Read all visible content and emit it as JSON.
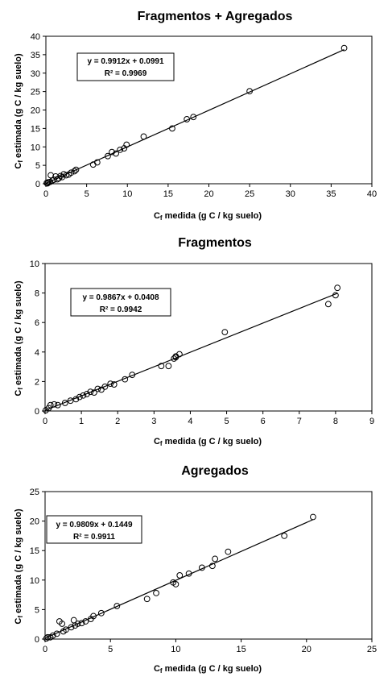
{
  "chart_data": [
    {
      "type": "scatter",
      "title": "Fragmentos + Agregados",
      "xlabel_main": "C",
      "xlabel_sub": "f",
      "xlabel_rest": " medida (g C / kg suelo)",
      "ylabel_main": "C",
      "ylabel_sub": "f",
      "ylabel_rest": " estimada (g C / kg suelo)",
      "xlim": [
        0,
        40
      ],
      "ylim": [
        0,
        40
      ],
      "xticks": [
        0,
        5,
        10,
        15,
        20,
        25,
        30,
        35,
        40
      ],
      "yticks": [
        0,
        5,
        10,
        15,
        20,
        25,
        30,
        35,
        40
      ],
      "equation": "y = 0.9912x + 0.0991",
      "r2": "R² = 0.9969",
      "trendline": {
        "slope": 0.9912,
        "intercept": 0.0991
      },
      "points": [
        [
          0.1,
          0.2
        ],
        [
          0.2,
          0.1
        ],
        [
          0.3,
          0.4
        ],
        [
          0.5,
          0.5
        ],
        [
          0.6,
          2.3
        ],
        [
          0.8,
          0.9
        ],
        [
          1.0,
          1.1
        ],
        [
          1.2,
          2.0
        ],
        [
          1.4,
          1.2
        ],
        [
          1.6,
          1.5
        ],
        [
          1.8,
          2.1
        ],
        [
          2.0,
          1.8
        ],
        [
          2.2,
          2.6
        ],
        [
          2.5,
          2.3
        ],
        [
          2.8,
          2.5
        ],
        [
          3.1,
          3.0
        ],
        [
          3.5,
          3.4
        ],
        [
          3.7,
          3.8
        ],
        [
          5.8,
          5.2
        ],
        [
          6.3,
          5.8
        ],
        [
          7.6,
          7.5
        ],
        [
          8.1,
          8.6
        ],
        [
          8.6,
          8.2
        ],
        [
          9.1,
          9.2
        ],
        [
          9.6,
          9.6
        ],
        [
          9.9,
          10.6
        ],
        [
          12.0,
          12.8
        ],
        [
          15.5,
          15.0
        ],
        [
          17.3,
          17.5
        ],
        [
          18.1,
          18.1
        ],
        [
          25.0,
          25.1
        ],
        [
          36.6,
          36.8
        ]
      ]
    },
    {
      "type": "scatter",
      "title": "Fragmentos",
      "xlabel_main": "C",
      "xlabel_sub": "f",
      "xlabel_rest": " medida (g C / kg suelo)",
      "ylabel_main": "C",
      "ylabel_sub": "f",
      "ylabel_rest": " estimada (g C / kg suelo)",
      "xlim": [
        0,
        9
      ],
      "ylim": [
        0,
        10
      ],
      "xticks": [
        0,
        1,
        2,
        3,
        4,
        5,
        6,
        7,
        8,
        9
      ],
      "yticks": [
        0,
        2,
        4,
        6,
        8,
        10
      ],
      "equation": "y = 0.9867x + 0.0408",
      "r2": "R² = 0.9942",
      "trendline": {
        "slope": 0.9867,
        "intercept": 0.0408
      },
      "points": [
        [
          0.02,
          0.05
        ],
        [
          0.1,
          0.2
        ],
        [
          0.15,
          0.4
        ],
        [
          0.25,
          0.45
        ],
        [
          0.35,
          0.4
        ],
        [
          0.55,
          0.55
        ],
        [
          0.7,
          0.7
        ],
        [
          0.85,
          0.8
        ],
        [
          0.95,
          0.95
        ],
        [
          1.05,
          1.05
        ],
        [
          1.15,
          1.15
        ],
        [
          1.25,
          1.3
        ],
        [
          1.35,
          1.25
        ],
        [
          1.45,
          1.5
        ],
        [
          1.55,
          1.45
        ],
        [
          1.65,
          1.65
        ],
        [
          1.8,
          1.85
        ],
        [
          1.9,
          1.8
        ],
        [
          2.2,
          2.15
        ],
        [
          2.4,
          2.45
        ],
        [
          3.2,
          3.05
        ],
        [
          3.4,
          3.05
        ],
        [
          3.55,
          3.55
        ],
        [
          3.6,
          3.7
        ],
        [
          3.6,
          3.65
        ],
        [
          3.7,
          3.85
        ],
        [
          4.95,
          5.35
        ],
        [
          7.8,
          7.25
        ],
        [
          8.0,
          7.85
        ],
        [
          8.05,
          8.35
        ]
      ]
    },
    {
      "type": "scatter",
      "title": "Agregados",
      "xlabel_main": "C",
      "xlabel_sub": "f",
      "xlabel_rest": " medida (g C / kg suelo)",
      "ylabel_main": "C",
      "ylabel_sub": "f",
      "ylabel_rest": " estimada (g C / kg suelo)",
      "xlim": [
        0,
        25
      ],
      "ylim": [
        0,
        25
      ],
      "xticks": [
        0,
        5,
        10,
        15,
        20,
        25
      ],
      "yticks": [
        0,
        5,
        10,
        15,
        20,
        25
      ],
      "equation": "y = 0.9809x + 0.1449",
      "r2": "R² = 0.9911",
      "trendline": {
        "slope": 0.9809,
        "intercept": 0.1449
      },
      "points": [
        [
          0.1,
          0.1
        ],
        [
          0.2,
          0.3
        ],
        [
          0.4,
          0.3
        ],
        [
          0.6,
          0.6
        ],
        [
          0.9,
          0.9
        ],
        [
          1.1,
          3.0
        ],
        [
          1.3,
          2.6
        ],
        [
          1.4,
          1.3
        ],
        [
          1.6,
          1.6
        ],
        [
          2.0,
          2.0
        ],
        [
          2.2,
          3.2
        ],
        [
          2.3,
          2.3
        ],
        [
          2.5,
          2.6
        ],
        [
          2.8,
          2.7
        ],
        [
          3.1,
          3.0
        ],
        [
          3.5,
          3.4
        ],
        [
          3.7,
          3.9
        ],
        [
          4.3,
          4.4
        ],
        [
          5.5,
          5.6
        ],
        [
          7.8,
          6.8
        ],
        [
          8.5,
          7.8
        ],
        [
          9.8,
          9.6
        ],
        [
          10.0,
          9.3
        ],
        [
          10.3,
          10.8
        ],
        [
          11.0,
          11.1
        ],
        [
          12.0,
          12.1
        ],
        [
          12.8,
          12.4
        ],
        [
          13.0,
          13.6
        ],
        [
          14.0,
          14.8
        ],
        [
          18.3,
          17.5
        ],
        [
          20.5,
          20.7
        ]
      ]
    }
  ]
}
